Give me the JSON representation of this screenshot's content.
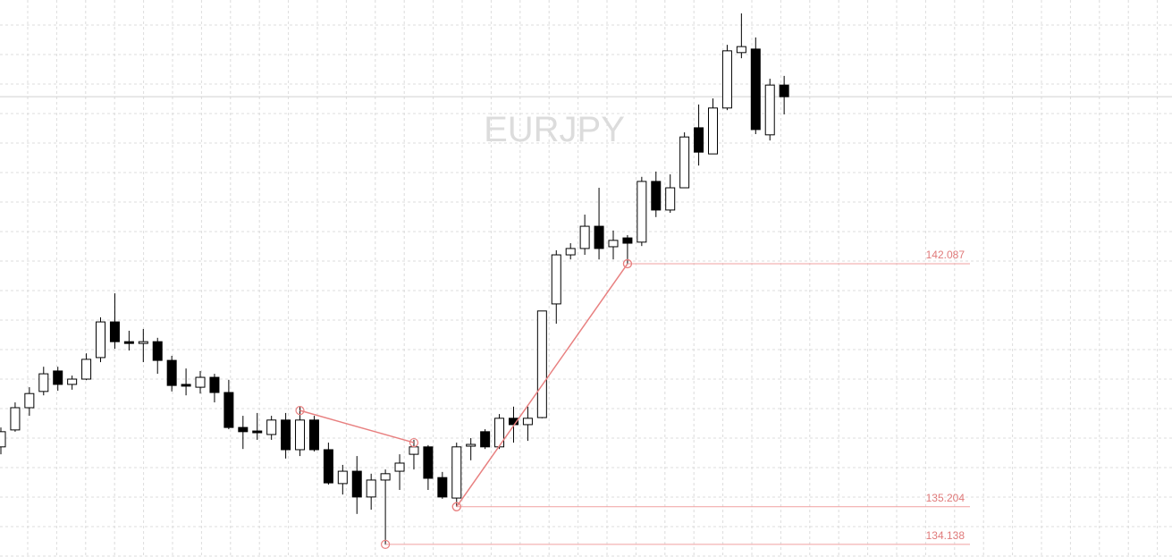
{
  "chart_data": {
    "type": "candlestick",
    "title": "EURJPY",
    "ylim": [
      133.78,
      149.56
    ],
    "open": [
      136.9,
      137.38,
      138.01,
      138.47,
      139.05,
      138.67,
      138.82,
      139.43,
      140.44,
      139.88,
      139.83,
      139.88,
      139.35,
      138.67,
      138.59,
      138.87,
      138.44,
      137.45,
      137.35,
      137.25,
      137.66,
      136.82,
      137.66,
      136.82,
      135.86,
      136.21,
      135.48,
      135.96,
      136.21,
      136.69,
      136.9,
      136.03,
      135.45,
      136.92,
      137.33,
      136.9,
      137.71,
      137.53,
      137.73,
      140.95,
      142.34,
      142.52,
      143.15,
      142.57,
      142.82,
      142.7,
      144.42,
      143.61,
      144.24,
      145.94,
      145.2,
      146.5,
      148.07,
      148.17,
      145.74,
      147.15
    ],
    "high": [
      137.45,
      138.16,
      138.59,
      139.17,
      139.17,
      138.92,
      139.55,
      140.57,
      141.25,
      140.19,
      140.24,
      139.99,
      139.48,
      139.12,
      139.05,
      138.97,
      138.8,
      137.78,
      137.86,
      137.78,
      137.86,
      138.04,
      137.78,
      137.02,
      136.39,
      136.64,
      136.14,
      136.26,
      136.69,
      137.1,
      136.95,
      136.19,
      137.02,
      137.15,
      137.4,
      137.83,
      138.04,
      138.04,
      140.75,
      142.47,
      142.67,
      143.48,
      144.24,
      143.03,
      142.9,
      144.55,
      144.7,
      144.62,
      145.81,
      146.6,
      146.77,
      148.29,
      149.18,
      148.5,
      147.33,
      147.41
    ],
    "low": [
      136.69,
      137.33,
      137.78,
      138.36,
      138.49,
      138.52,
      138.79,
      139.3,
      139.68,
      139.63,
      139.3,
      138.97,
      138.47,
      138.36,
      138.41,
      138.16,
      137.4,
      136.84,
      137.1,
      137.1,
      136.57,
      136.64,
      136.77,
      135.83,
      135.55,
      135.0,
      135.12,
      134.13,
      135.68,
      136.26,
      135.68,
      135.43,
      135.2,
      136.52,
      136.84,
      136.84,
      137.02,
      137.07,
      137.71,
      140.39,
      142.21,
      142.34,
      142.21,
      142.21,
      142.09,
      142.59,
      143.41,
      143.53,
      144.24,
      144.87,
      145.2,
      146.44,
      147.91,
      145.76,
      145.58,
      146.32
    ],
    "close": [
      137.33,
      138.01,
      138.41,
      138.97,
      138.67,
      138.82,
      139.38,
      140.44,
      139.88,
      139.83,
      139.88,
      139.35,
      138.64,
      138.62,
      138.87,
      138.44,
      137.45,
      137.33,
      137.3,
      137.66,
      136.82,
      137.66,
      136.82,
      135.88,
      136.21,
      135.48,
      135.96,
      136.14,
      136.44,
      136.9,
      136.01,
      135.48,
      136.9,
      136.97,
      136.9,
      137.71,
      137.53,
      137.71,
      140.75,
      142.34,
      142.52,
      143.15,
      142.52,
      142.75,
      142.67,
      144.42,
      143.61,
      144.24,
      145.68,
      145.25,
      146.5,
      148.12,
      148.24,
      145.89,
      147.15,
      146.82
    ],
    "up_color": "#ffffff",
    "down_color": "#000000",
    "line_color": "#000000",
    "zigzag": [
      {
        "x": [
          21,
          29
        ],
        "values": [
          137.93,
          137.02
        ]
      },
      {
        "x": [
          32,
          44
        ],
        "values": [
          135.204,
          142.087
        ]
      }
    ],
    "zigzag_color": "#e88080",
    "levels": [
      {
        "value": 142.087,
        "x": 44
      },
      {
        "value": 135.204,
        "x": 32
      },
      {
        "value": 134.138,
        "x": 27
      }
    ],
    "level_color": "#f0a0a0",
    "last_price_line": true,
    "grid": true
  }
}
